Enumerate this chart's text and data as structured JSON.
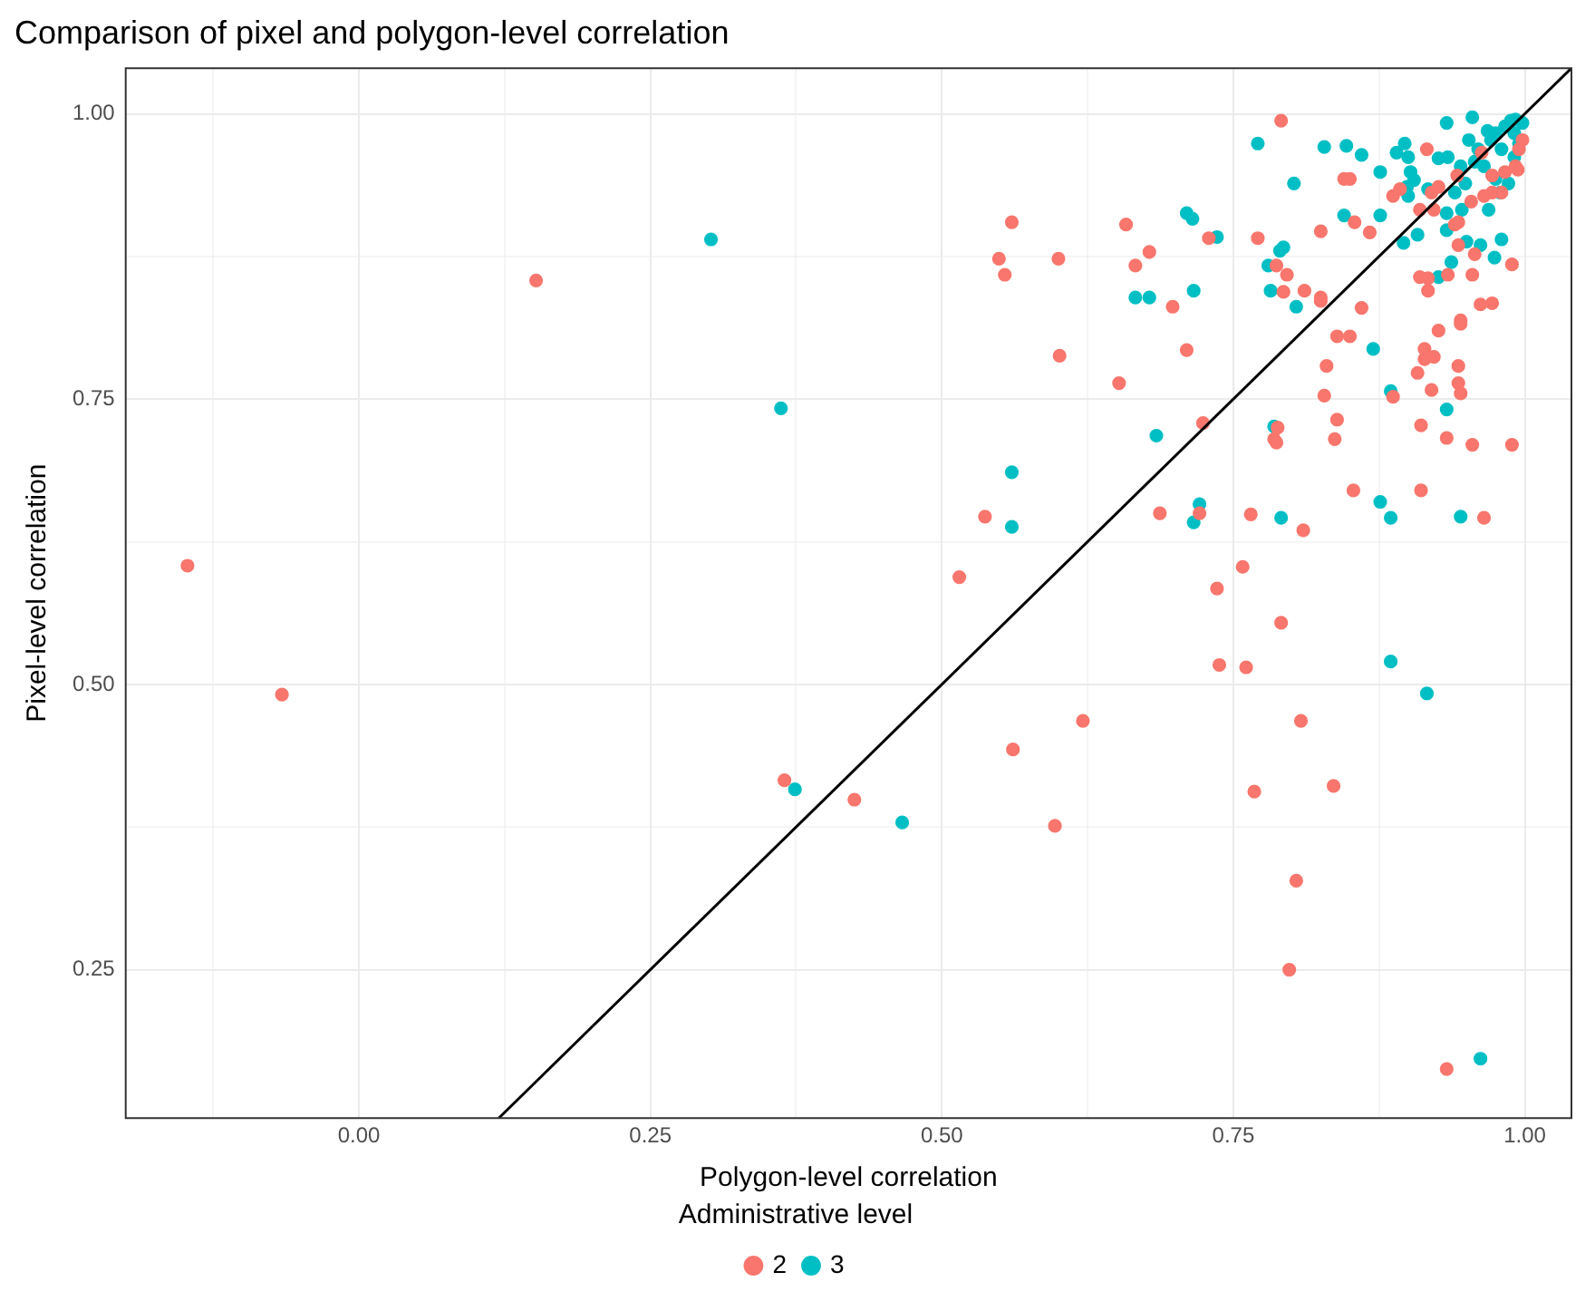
{
  "chart_data": {
    "type": "scatter",
    "title": "Comparison of pixel and polygon-level correlation",
    "xlabel": "Polygon-level correlation",
    "ylabel": "Pixel-level correlation",
    "legend_title": "Administrative level",
    "legend": "bottom",
    "grid": true,
    "marker": "circle",
    "xlim": [
      -0.2,
      1.04
    ],
    "ylim": [
      0.12,
      1.04
    ],
    "xticks": [
      {
        "value": -0.125,
        "label": null
      },
      {
        "value": 0,
        "label": "0.00"
      },
      {
        "value": 0.125,
        "label": null
      },
      {
        "value": 0.25,
        "label": "0.25"
      },
      {
        "value": 0.375,
        "label": null
      },
      {
        "value": 0.5,
        "label": "0.50"
      },
      {
        "value": 0.625,
        "label": null
      },
      {
        "value": 0.75,
        "label": "0.75"
      },
      {
        "value": 0.875,
        "label": null
      },
      {
        "value": 1,
        "label": "1.00"
      }
    ],
    "yticks": [
      {
        "value": 0.25,
        "label": "0.25"
      },
      {
        "value": 0.375,
        "label": null
      },
      {
        "value": 0.5,
        "label": "0.50"
      },
      {
        "value": 0.625,
        "label": null
      },
      {
        "value": 0.75,
        "label": "0.75"
      },
      {
        "value": 0.875,
        "label": null
      },
      {
        "value": 1,
        "label": "1.00"
      }
    ],
    "series": [
      {
        "name": "2",
        "color": "#f8766d",
        "x": [
          -0.147,
          -0.066,
          0.152,
          0.365,
          0.425,
          0.515,
          0.561,
          0.621,
          0.597,
          0.56,
          0.549,
          0.554,
          0.6,
          0.601,
          0.537,
          0.658,
          0.678,
          0.666,
          0.698,
          0.71,
          0.652,
          0.687,
          0.791,
          0.845,
          0.85,
          0.916,
          0.893,
          0.92,
          0.887,
          0.926,
          0.854,
          0.867,
          0.729,
          0.771,
          0.787,
          0.796,
          0.811,
          0.825,
          0.91,
          0.922,
          0.94,
          0.943,
          0.943,
          0.957,
          0.989,
          0.91,
          0.917,
          0.934,
          0.955,
          0.917,
          0.954,
          0.965,
          0.972,
          0.942,
          0.972,
          0.983,
          0.994,
          0.963,
          0.998,
          0.793,
          0.825,
          0.86,
          0.839,
          0.85,
          0.83,
          0.828,
          0.887,
          0.914,
          0.922,
          0.914,
          0.908,
          0.92,
          0.943,
          0.943,
          0.945,
          0.945,
          0.945,
          0.926,
          0.962,
          0.972,
          0.911,
          0.933,
          0.955,
          0.989,
          0.839,
          0.837,
          0.788,
          0.785,
          0.787,
          0.724,
          0.853,
          0.911,
          0.721,
          0.765,
          0.81,
          0.965,
          0.758,
          0.736,
          0.791,
          0.738,
          0.761,
          0.808,
          0.768,
          0.836,
          0.804,
          0.798,
          0.933,
          0.995,
          0.992,
          0.98,
          0.825
        ],
        "values": [
          0.604,
          0.491,
          0.854,
          0.416,
          0.399,
          0.594,
          0.443,
          0.468,
          0.376,
          0.905,
          0.873,
          0.859,
          0.873,
          0.788,
          0.647,
          0.903,
          0.879,
          0.867,
          0.831,
          0.793,
          0.764,
          0.65,
          0.994,
          0.943,
          0.943,
          0.969,
          0.934,
          0.931,
          0.928,
          0.936,
          0.905,
          0.896,
          0.891,
          0.891,
          0.867,
          0.859,
          0.845,
          0.839,
          0.916,
          0.916,
          0.903,
          0.905,
          0.885,
          0.877,
          0.868,
          0.857,
          0.856,
          0.859,
          0.859,
          0.845,
          0.923,
          0.928,
          0.931,
          0.946,
          0.946,
          0.949,
          0.951,
          0.966,
          0.977,
          0.844,
          0.836,
          0.83,
          0.805,
          0.805,
          0.779,
          0.753,
          0.752,
          0.794,
          0.787,
          0.785,
          0.773,
          0.758,
          0.779,
          0.764,
          0.755,
          0.819,
          0.816,
          0.81,
          0.833,
          0.834,
          0.727,
          0.716,
          0.71,
          0.71,
          0.732,
          0.715,
          0.725,
          0.715,
          0.712,
          0.729,
          0.67,
          0.67,
          0.65,
          0.649,
          0.635,
          0.646,
          0.603,
          0.584,
          0.554,
          0.517,
          0.515,
          0.468,
          0.406,
          0.411,
          0.328,
          0.25,
          0.163,
          0.969,
          0.954,
          0.931,
          0.897
        ]
      },
      {
        "name": "3",
        "color": "#00bfc4",
        "x": [
          0.302,
          0.362,
          0.374,
          0.466,
          0.56,
          0.56,
          0.666,
          0.678,
          0.715,
          0.716,
          0.684,
          0.721,
          0.771,
          0.828,
          0.847,
          0.86,
          0.802,
          0.876,
          0.89,
          0.897,
          0.9,
          0.902,
          0.905,
          0.899,
          0.9,
          0.917,
          0.926,
          0.933,
          0.955,
          0.845,
          0.876,
          0.736,
          0.71,
          0.793,
          0.79,
          0.78,
          0.782,
          0.896,
          0.908,
          0.933,
          0.933,
          0.937,
          0.95,
          0.962,
          0.974,
          0.98,
          0.926,
          0.946,
          0.969,
          0.979,
          0.957,
          0.991,
          0.988,
          0.975,
          0.804,
          0.87,
          0.885,
          0.933,
          0.785,
          0.876,
          0.716,
          0.791,
          0.885,
          0.945,
          0.885,
          0.916,
          0.962,
          0.983,
          0.992,
          0.998,
          0.971,
          0.98,
          0.991,
          0.995,
          0.965,
          0.975,
          0.949,
          0.94,
          0.986,
          0.96,
          0.945,
          0.968,
          0.952,
          0.934
        ],
        "values": [
          0.89,
          0.742,
          0.408,
          0.379,
          0.686,
          0.638,
          0.839,
          0.839,
          0.908,
          0.845,
          0.718,
          0.658,
          0.974,
          0.971,
          0.972,
          0.964,
          0.939,
          0.949,
          0.966,
          0.974,
          0.962,
          0.949,
          0.942,
          0.936,
          0.928,
          0.934,
          0.961,
          0.992,
          0.997,
          0.911,
          0.911,
          0.892,
          0.913,
          0.883,
          0.88,
          0.867,
          0.845,
          0.887,
          0.894,
          0.913,
          0.898,
          0.87,
          0.888,
          0.885,
          0.874,
          0.89,
          0.857,
          0.916,
          0.916,
          0.931,
          0.958,
          0.983,
          0.994,
          0.983,
          0.831,
          0.794,
          0.757,
          0.741,
          0.726,
          0.66,
          0.642,
          0.646,
          0.646,
          0.647,
          0.52,
          0.492,
          0.172,
          0.989,
          0.995,
          0.992,
          0.977,
          0.969,
          0.962,
          0.974,
          0.954,
          0.943,
          0.939,
          0.931,
          0.939,
          0.969,
          0.954,
          0.985,
          0.977,
          0.962
        ]
      },
      {
        "type": "line",
        "marker": "none",
        "color": "#000000",
        "x": [
          0.12,
          1.04
        ],
        "values": [
          0.12,
          1.04
        ]
      }
    ]
  }
}
